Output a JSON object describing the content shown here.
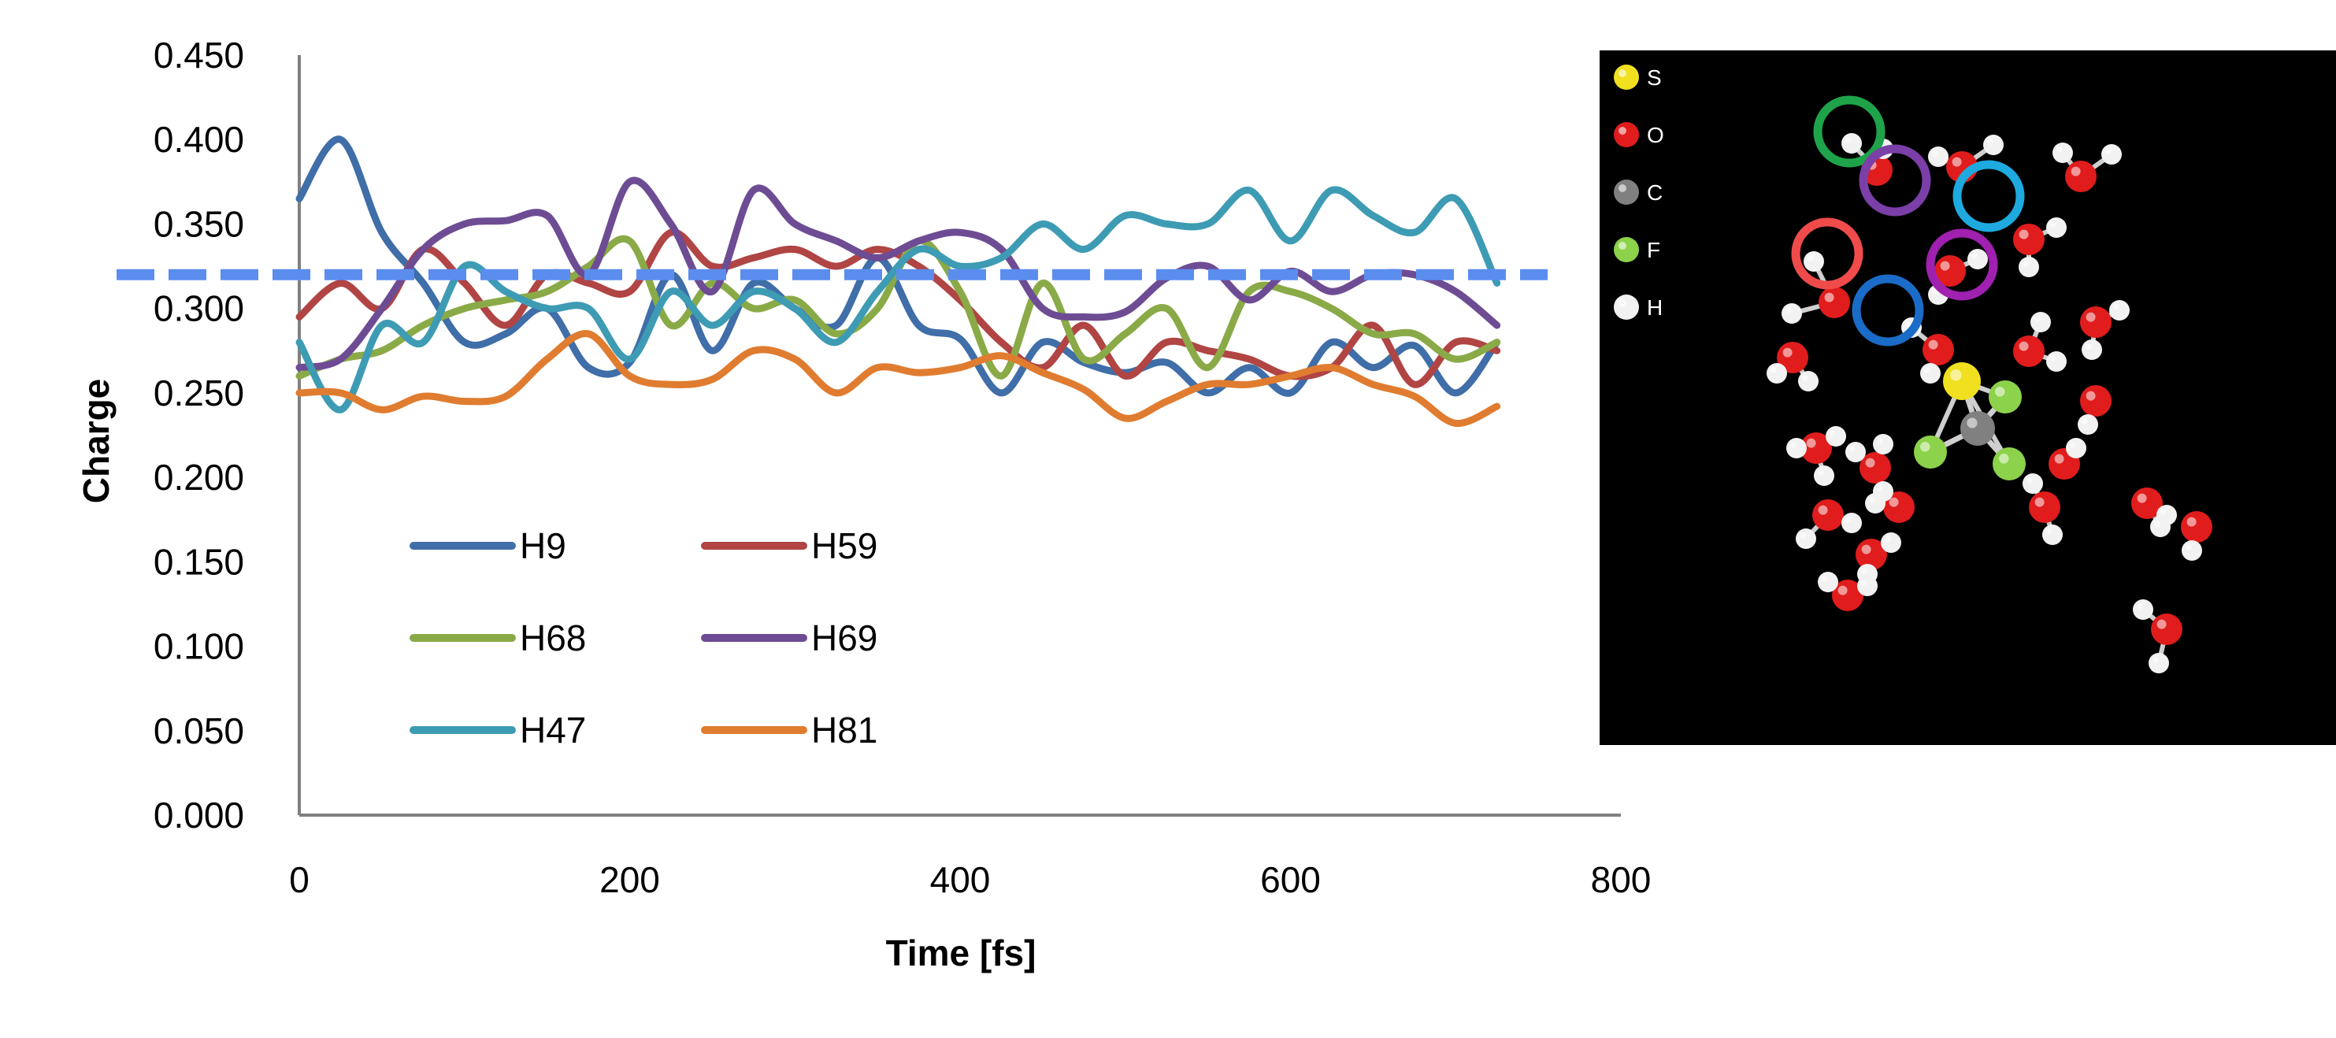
{
  "chart_data": {
    "type": "line",
    "xlabel": "Time [fs]",
    "ylabel": "Charge",
    "xlim": [
      0,
      800
    ],
    "ylim": [
      0,
      0.45
    ],
    "xticks": [
      "0",
      "200",
      "400",
      "600",
      "800"
    ],
    "yticks": [
      "0.000",
      "0.050",
      "0.100",
      "0.150",
      "0.200",
      "0.250",
      "0.300",
      "0.350",
      "0.400",
      "0.450"
    ],
    "grid": false,
    "legend_position": "lower-left",
    "reference_line": {
      "y": 0.32,
      "style": "dashed",
      "color": "#5b8def"
    },
    "x": [
      0,
      25,
      50,
      75,
      100,
      125,
      150,
      175,
      200,
      225,
      250,
      275,
      300,
      325,
      350,
      375,
      400,
      425,
      450,
      475,
      500,
      525,
      550,
      575,
      600,
      625,
      650,
      675,
      700,
      725
    ],
    "series": [
      {
        "name": "H9",
        "color": "#3f6ea8",
        "values": [
          0.365,
          0.4,
          0.345,
          0.315,
          0.28,
          0.285,
          0.3,
          0.265,
          0.268,
          0.32,
          0.275,
          0.315,
          0.3,
          0.29,
          0.33,
          0.29,
          0.282,
          0.25,
          0.28,
          0.268,
          0.262,
          0.268,
          0.25,
          0.265,
          0.25,
          0.28,
          0.265,
          0.278,
          0.25,
          0.28
        ]
      },
      {
        "name": "H59",
        "color": "#b04544",
        "values": [
          0.295,
          0.315,
          0.3,
          0.335,
          0.315,
          0.29,
          0.32,
          0.315,
          0.31,
          0.345,
          0.325,
          0.33,
          0.335,
          0.325,
          0.335,
          0.325,
          0.305,
          0.28,
          0.265,
          0.29,
          0.26,
          0.28,
          0.275,
          0.27,
          0.26,
          0.265,
          0.29,
          0.255,
          0.28,
          0.275
        ]
      },
      {
        "name": "H68",
        "color": "#8aaa48",
        "values": [
          0.26,
          0.27,
          0.275,
          0.29,
          0.3,
          0.305,
          0.31,
          0.325,
          0.34,
          0.29,
          0.315,
          0.3,
          0.305,
          0.285,
          0.3,
          0.34,
          0.31,
          0.26,
          0.315,
          0.27,
          0.285,
          0.3,
          0.265,
          0.31,
          0.31,
          0.3,
          0.285,
          0.285,
          0.27,
          0.28
        ]
      },
      {
        "name": "H69",
        "color": "#6e4c94",
        "values": [
          0.265,
          0.27,
          0.3,
          0.335,
          0.35,
          0.352,
          0.355,
          0.32,
          0.375,
          0.35,
          0.31,
          0.37,
          0.35,
          0.34,
          0.33,
          0.34,
          0.345,
          0.335,
          0.3,
          0.295,
          0.298,
          0.318,
          0.325,
          0.305,
          0.322,
          0.31,
          0.32,
          0.32,
          0.31,
          0.29
        ]
      },
      {
        "name": "H47",
        "color": "#3e9bb4",
        "values": [
          0.28,
          0.24,
          0.29,
          0.28,
          0.325,
          0.31,
          0.3,
          0.3,
          0.27,
          0.31,
          0.29,
          0.31,
          0.3,
          0.28,
          0.31,
          0.335,
          0.325,
          0.33,
          0.35,
          0.335,
          0.355,
          0.35,
          0.35,
          0.37,
          0.34,
          0.37,
          0.355,
          0.345,
          0.365,
          0.315
        ]
      },
      {
        "name": "H81",
        "color": "#e07c30",
        "values": [
          0.25,
          0.25,
          0.24,
          0.248,
          0.245,
          0.248,
          0.27,
          0.285,
          0.26,
          0.255,
          0.258,
          0.275,
          0.27,
          0.25,
          0.265,
          0.262,
          0.265,
          0.272,
          0.262,
          0.252,
          0.235,
          0.245,
          0.255,
          0.255,
          0.26,
          0.265,
          0.255,
          0.248,
          0.232,
          0.242
        ]
      }
    ]
  },
  "molecule_legend": [
    {
      "label": "S",
      "color": "#f0e020"
    },
    {
      "label": "O",
      "color": "#e01c1c"
    },
    {
      "label": "C",
      "color": "#808080"
    },
    {
      "label": "F",
      "color": "#8cd24a"
    },
    {
      "label": "H",
      "color": "#f2f2f2"
    }
  ],
  "highlight_colors": [
    "#1fa34a",
    "#7b3fa8",
    "#1eaadf",
    "#f04b4b",
    "#a020b0",
    "#1b6cc8"
  ]
}
